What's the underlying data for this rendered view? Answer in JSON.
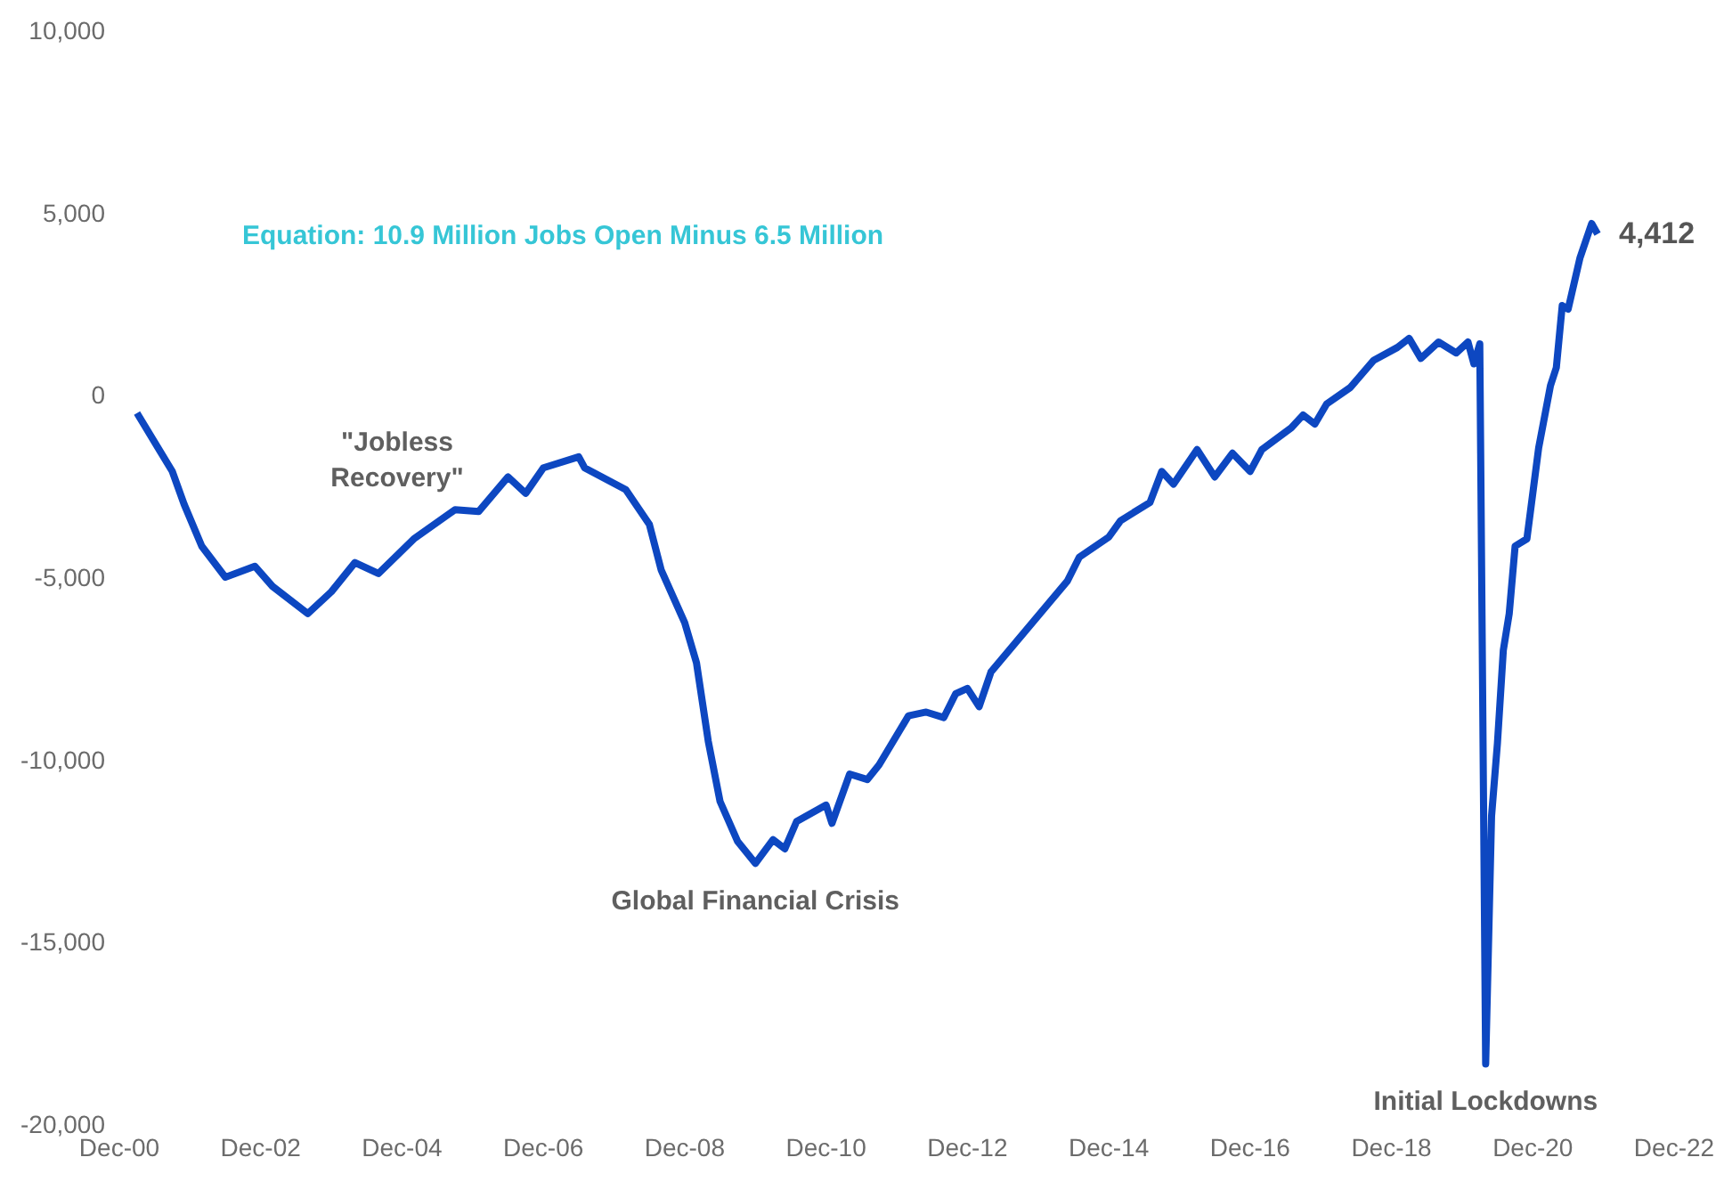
{
  "chart_data": {
    "type": "line",
    "x": [
      "2001-03",
      "2001-09",
      "2001-11",
      "2002-02",
      "2002-06",
      "2002-11",
      "2003-02",
      "2003-08",
      "2003-12",
      "2004-04",
      "2004-08",
      "2005-02",
      "2005-09",
      "2006-01",
      "2006-06",
      "2006-09",
      "2006-12",
      "2007-06",
      "2007-07",
      "2008-02",
      "2008-06",
      "2008-08",
      "2008-12",
      "2009-02",
      "2009-04",
      "2009-06",
      "2009-09",
      "2009-12",
      "2010-03",
      "2010-05",
      "2010-07",
      "2010-12",
      "2011-01",
      "2011-04",
      "2011-07",
      "2011-09",
      "2012-02",
      "2012-05",
      "2012-08",
      "2012-10",
      "2012-12",
      "2013-02",
      "2013-04",
      "2014-05",
      "2014-07",
      "2014-12",
      "2015-02",
      "2015-07",
      "2015-09",
      "2015-11",
      "2016-03",
      "2016-06",
      "2016-09",
      "2016-12",
      "2017-02",
      "2017-07",
      "2017-09",
      "2017-11",
      "2018-01",
      "2018-05",
      "2018-09",
      "2019-01",
      "2019-03",
      "2019-05",
      "2019-08",
      "2019-11",
      "2020-01",
      "2020-02",
      "2020-03",
      "2020-04",
      "2020-05",
      "2020-06",
      "2020-07",
      "2020-08",
      "2020-09",
      "2020-11",
      "2021-01",
      "2021-03",
      "2021-04",
      "2021-05",
      "2021-06",
      "2021-08",
      "2021-10",
      "2021-11"
    ],
    "series": [
      {
        "color": "#0d47c1",
        "values": [
          -500,
          -2100,
          -3000,
          -4150,
          -5000,
          -4700,
          -5250,
          -6000,
          -5400,
          -4600,
          -4900,
          -3950,
          -3150,
          -3200,
          -2250,
          -2700,
          -2000,
          -1700,
          -2000,
          -2600,
          -3550,
          -4800,
          -6250,
          -7350,
          -9500,
          -11150,
          -12250,
          -12850,
          -12200,
          -12450,
          -11700,
          -11250,
          -11750,
          -10400,
          -10550,
          -10150,
          -8800,
          -8700,
          -8850,
          -8200,
          -8050,
          -8550,
          -7600,
          -5100,
          -4450,
          -3900,
          -3450,
          -2950,
          -2100,
          -2450,
          -1500,
          -2250,
          -1600,
          -2100,
          -1500,
          -900,
          -550,
          -800,
          -250,
          200,
          950,
          1300,
          1550,
          1000,
          1450,
          1150,
          1450,
          850,
          1400,
          -18350,
          -11550,
          -9550,
          -7000,
          -6000,
          -4150,
          -3950,
          -1450,
          250,
          750,
          2450,
          2350,
          3750,
          4700,
          4412
        ],
        "value_labels": [
          null,
          null,
          null,
          null,
          null,
          null,
          null,
          null,
          null,
          null,
          null,
          null,
          null,
          null,
          null,
          null,
          null,
          null,
          null,
          null,
          null,
          null,
          null,
          null,
          null,
          null,
          null,
          null,
          null,
          null,
          null,
          null,
          null,
          null,
          null,
          null,
          null,
          null,
          null,
          null,
          null,
          null,
          null,
          null,
          null,
          null,
          null,
          null,
          null,
          null,
          null,
          null,
          null,
          null,
          null,
          null,
          null,
          null,
          null,
          null,
          null,
          null,
          null,
          null,
          null,
          null,
          null,
          null,
          null,
          null,
          null,
          null,
          null,
          null,
          null,
          null,
          null,
          null,
          null,
          null,
          null,
          null,
          null,
          "4,412"
        ]
      }
    ],
    "xlim": [
      "2000-12",
      "2022-12"
    ],
    "xticks": [
      {
        "value": "2000-12",
        "label": "Dec-00"
      },
      {
        "value": "2002-12",
        "label": "Dec-02"
      },
      {
        "value": "2004-12",
        "label": "Dec-04"
      },
      {
        "value": "2006-12",
        "label": "Dec-06"
      },
      {
        "value": "2008-12",
        "label": "Dec-08"
      },
      {
        "value": "2010-12",
        "label": "Dec-10"
      },
      {
        "value": "2012-12",
        "label": "Dec-12"
      },
      {
        "value": "2014-12",
        "label": "Dec-14"
      },
      {
        "value": "2016-12",
        "label": "Dec-16"
      },
      {
        "value": "2018-12",
        "label": "Dec-18"
      },
      {
        "value": "2020-12",
        "label": "Dec-20"
      },
      {
        "value": "2022-12",
        "label": "Dec-22"
      }
    ],
    "ylim": [
      -20000,
      10000
    ],
    "yticks": [
      {
        "value": 10000,
        "label": "10,000"
      },
      {
        "value": 5000,
        "label": "5,000"
      },
      0,
      {
        "value": -5000,
        "label": "-5,000"
      },
      {
        "value": -10000,
        "label": "-10,000"
      },
      {
        "value": -15000,
        "label": "-15,000"
      },
      {
        "value": -20000,
        "label": "-20,000"
      }
    ],
    "marker": "none",
    "annotations": [
      "Equation: 10.9 Million Jobs Open Minus 6.5 Million",
      "\"Jobless\nRecovery\"",
      {
        "text": "Global Financial Crisis",
        "x": "2009-12",
        "y": -12850
      },
      {
        "text": "Initial Lockdowns",
        "x": "2020-04",
        "y": -18350
      }
    ]
  }
}
